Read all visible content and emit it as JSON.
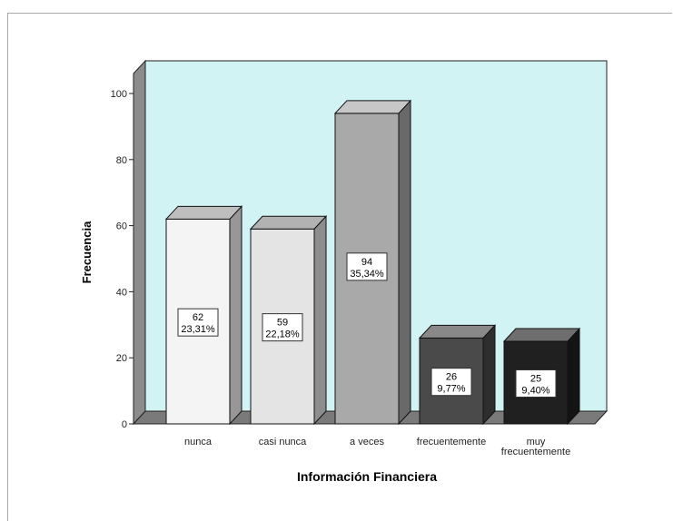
{
  "chart_data": {
    "type": "bar",
    "title": "",
    "xlabel": "Información Financiera",
    "ylabel": "Frecuencia",
    "ylim": [
      0,
      100
    ],
    "yticks": [
      0,
      20,
      40,
      60,
      80,
      100
    ],
    "categories": [
      "nunca",
      "casi nunca",
      "a veces",
      "frecuentemente",
      "muy frecuentemente"
    ],
    "category_lines": [
      [
        "nunca"
      ],
      [
        "casi nunca"
      ],
      [
        "a veces"
      ],
      [
        "frecuentemente"
      ],
      [
        "muy",
        "frecuentemente"
      ]
    ],
    "values": [
      62,
      59,
      94,
      26,
      25
    ],
    "percent_labels": [
      "23,31%",
      "22,18%",
      "35,34%",
      "9,77%",
      "9,40%"
    ],
    "value_labels": [
      "62",
      "59",
      "94",
      "26",
      "25"
    ],
    "bar_colors": [
      "#f4f4f4",
      "#e4e4e4",
      "#a9a9a9",
      "#4a4a4a",
      "#202020"
    ],
    "plot_background": "#d2f3f4",
    "grid": false,
    "legend": "none",
    "style": "3d-bar"
  }
}
